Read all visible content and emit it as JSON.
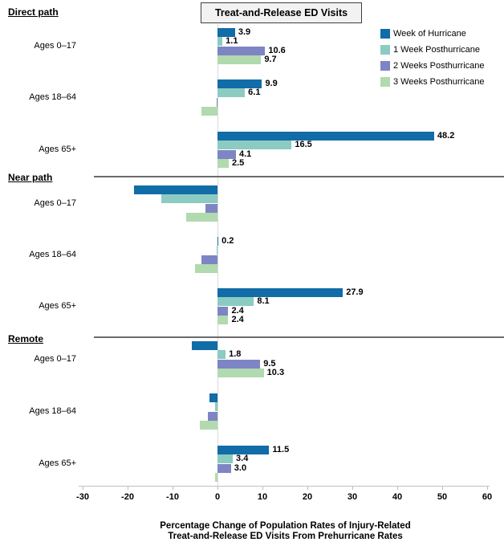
{
  "title_box": {
    "label": "Treat-and-Release ED Visits"
  },
  "chart_data": {
    "type": "bar",
    "orientation": "horizontal",
    "title": "Treat-and-Release ED Visits",
    "series": [
      {
        "name": "Week of Hurricane",
        "color": "#116CA8"
      },
      {
        "name": "1 Week Posthurricane",
        "color": "#8BCBC2"
      },
      {
        "name": "2 Weeks Posthurricane",
        "color": "#7E85C4"
      },
      {
        "name": "3 Weeks Posthurricane",
        "color": "#B1DAAF"
      }
    ],
    "groups": [
      {
        "label": "Direct path",
        "rows": [
          {
            "category": "Ages 0–17",
            "values": [
              3.9,
              1.1,
              10.6,
              9.7
            ]
          },
          {
            "category": "Ages 18–64",
            "values": [
              9.9,
              6.1,
              -0.2,
              -3.5
            ]
          },
          {
            "category": "Ages 65+",
            "values": [
              48.2,
              16.5,
              4.1,
              2.5
            ]
          }
        ]
      },
      {
        "label": "Near path",
        "rows": [
          {
            "category": "Ages 0–17",
            "values": [
              -18.6,
              -12.5,
              -2.7,
              -6.9
            ]
          },
          {
            "category": "Ages 18–64",
            "values": [
              0.2,
              -0.1,
              -3.6,
              -5.0
            ]
          },
          {
            "category": "Ages 65+",
            "values": [
              27.9,
              8.1,
              2.4,
              2.4
            ]
          }
        ]
      },
      {
        "label": "Remote",
        "rows": [
          {
            "category": "Ages 0–17",
            "values": [
              -5.8,
              1.8,
              9.5,
              10.3
            ]
          },
          {
            "category": "Ages 18–64",
            "values": [
              -1.7,
              -0.6,
              -2.1,
              -3.9
            ]
          },
          {
            "category": "Ages 65+",
            "values": [
              11.5,
              3.4,
              3.0,
              -0.5
            ]
          }
        ]
      }
    ],
    "xlim": [
      -30,
      60
    ],
    "xticks": [
      -30,
      -20,
      -10,
      0,
      10,
      20,
      30,
      40,
      50,
      60
    ],
    "grid": false,
    "value_labels": true,
    "legend_position": "top-right",
    "xlabel": "Percentage Change of Population Rates of Injury-Related Treat-and-Release ED Visits From Prehurricane Rates",
    "xlabel_lines": [
      "Percentage Change of Population Rates of Injury-Related",
      "Treat-and-Release ED Visits From Prehurricane Rates"
    ]
  }
}
